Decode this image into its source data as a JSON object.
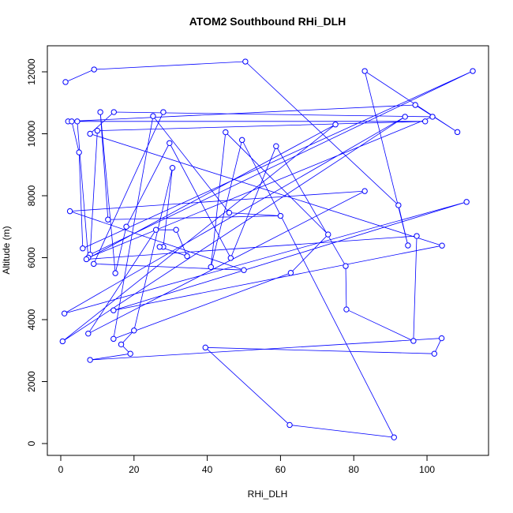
{
  "chart_data": {
    "type": "scatter-line",
    "title": "ATOM2 Southbound RHi_DLH",
    "x_label": "RHi_DLH",
    "y_label": "Altitude (m)",
    "color": "#0000ff",
    "x": [
      1.3,
      9.1,
      50.4,
      92.2,
      94.8,
      83.0,
      108.3,
      96.8,
      2.0,
      3.0,
      5.0,
      6.0,
      112.5,
      8.0,
      10.0,
      99.5,
      4.5,
      7.5,
      101.5,
      14.5,
      8.0,
      104.1,
      14.4,
      110.8,
      1.0,
      94.0,
      0.5,
      75.0,
      7.0,
      97.2,
      96.3,
      78.0,
      77.8,
      58.8,
      46.4,
      29.7,
      17.9,
      14.9,
      10.8,
      12.9,
      60.0,
      46.0,
      25.2,
      14.4,
      62.8,
      73.0,
      45.0,
      41.0,
      49.5,
      91.0,
      62.5,
      39.5,
      102.0,
      104.0,
      8.0,
      19.0,
      16.5,
      20.0,
      30.5,
      28.0,
      27.0,
      34.5,
      31.5,
      26.0,
      7.5,
      83.0,
      2.5,
      50.0,
      9.0,
      28.0
    ],
    "y": [
      11670,
      12076,
      12331,
      7694,
      6395,
      12025,
      10055,
      10930,
      10400,
      10400,
      9400,
      6300,
      12025,
      6100,
      10100,
      10400,
      10400,
      6000,
      10550,
      10700,
      10000,
      6390,
      4300,
      7800,
      4200,
      10550,
      3300,
      10300,
      5950,
      6700,
      3313,
      4330,
      5730,
      9600,
      5990,
      9700,
      7000,
      5500,
      10700,
      7230,
      7350,
      7450,
      10570,
      3380,
      5510,
      6750,
      10050,
      5700,
      9800,
      200,
      600,
      3100,
      2900,
      3400,
      2700,
      2900,
      3200,
      3650,
      8900,
      6350,
      6350,
      6050,
      6900,
      6900,
      3550,
      8150,
      7500,
      5600,
      5800,
      10700
    ],
    "xlim": [
      -3.66,
      116.8
    ],
    "ylim": [
      -382,
      12841
    ],
    "xticks": [
      0,
      20,
      40,
      60,
      80,
      100
    ],
    "yticks": [
      0,
      2000,
      4000,
      6000,
      8000,
      10000,
      12000
    ]
  }
}
